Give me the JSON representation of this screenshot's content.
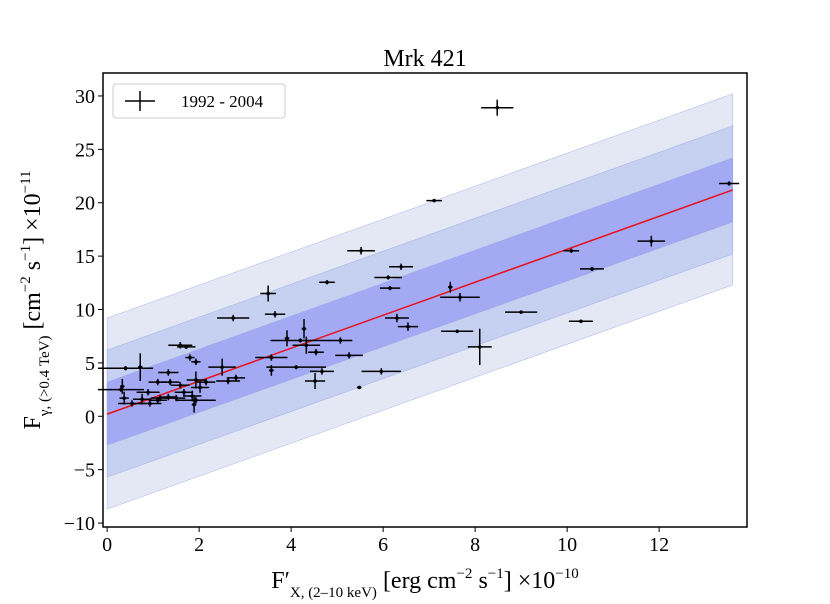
{
  "chart_data": {
    "type": "errorbar",
    "title": "Mrk 421",
    "xlabel": [
      "F′",
      "X, (2–10 keV)",
      " [erg cm",
      "−2",
      " s",
      "−1",
      "] ×10",
      "−10"
    ],
    "ylabel": [
      "F",
      "γ, (>0.4 TeV)",
      " [cm",
      "−2",
      " s",
      "−1",
      "] ×10",
      "−11"
    ],
    "xlim": [
      -0.09,
      13.91
    ],
    "ylim": [
      -10.37,
      32.15
    ],
    "xticks": [
      0,
      2,
      4,
      6,
      8,
      10,
      12
    ],
    "yticks": [
      {
        "value": -10,
        "label": "−10"
      },
      {
        "value": -5,
        "label": "−5"
      },
      0,
      5,
      10,
      15,
      20,
      25,
      30
    ],
    "legend": "upper left",
    "bands": [
      {
        "x": [
          0,
          13.6
        ],
        "lower": [
          -8.7,
          12.3
        ],
        "upper": [
          9.2,
          30.2
        ],
        "color": "#e3e8f4"
      },
      {
        "x": [
          0,
          13.6
        ],
        "lower": [
          -5.7,
          15.2
        ],
        "upper": [
          6.2,
          27.2
        ],
        "color": "#c6d0f0"
      },
      {
        "x": [
          0,
          13.6
        ],
        "lower": [
          -2.7,
          18.2
        ],
        "upper": [
          3.2,
          24.2
        ],
        "color": "#a3a9f3"
      }
    ],
    "fit": {
      "x": [
        0,
        13.6
      ],
      "values": [
        0.2,
        21.2
      ],
      "color": "#e8101a"
    },
    "series": [
      {
        "name": "1992 - 2004",
        "color": "#000000",
        "x": [
          8.48,
          7.11,
          13.52,
          11.83,
          10.09,
          10.54,
          5.52,
          6.39,
          6.11,
          6.15,
          4.78,
          7.46,
          7.67,
          3.5,
          9.0,
          10.3,
          2.74,
          3.65,
          6.3,
          6.54,
          7.61,
          8.1,
          5.07,
          4.2,
          4.28,
          4.33,
          4.54,
          4.67,
          4.52,
          5.26,
          5.96,
          5.48,
          3.91,
          3.57,
          3.57,
          4.11,
          1.59,
          1.72,
          1.8,
          1.93,
          2.5,
          2.8,
          2.63,
          0.72,
          0.4,
          0.3,
          0.33,
          0.37,
          1.33,
          1.37,
          1.1,
          0.89,
          1.15,
          1.59,
          1.93,
          2.02,
          2.15,
          1.85,
          1.93,
          1.89,
          1.5,
          0.54,
          0.76,
          0.93,
          1.1,
          1.33,
          1.67
        ],
        "values": [
          28.9,
          20.2,
          21.8,
          16.4,
          15.5,
          13.8,
          15.5,
          14.0,
          13.0,
          12.0,
          12.55,
          12.1,
          11.15,
          11.5,
          9.75,
          8.9,
          9.2,
          9.55,
          9.2,
          8.4,
          7.96,
          6.5,
          7.1,
          7.1,
          8.2,
          6.65,
          6.0,
          4.2,
          3.3,
          5.7,
          4.2,
          2.7,
          7.3,
          5.5,
          4.3,
          4.6,
          6.65,
          6.5,
          5.5,
          5.1,
          4.6,
          3.6,
          3.3,
          4.6,
          4.5,
          2.5,
          2.8,
          1.7,
          4.1,
          3.2,
          3.2,
          2.25,
          1.7,
          2.9,
          3.4,
          2.7,
          3.2,
          1.9,
          1.5,
          1.1,
          1.7,
          1.2,
          1.6,
          1.2,
          1.5,
          1.8,
          2.25
        ],
        "xerr": [
          0.35,
          0.17,
          0.22,
          0.3,
          0.17,
          0.26,
          0.3,
          0.26,
          0.3,
          0.22,
          0.17,
          0.05,
          0.43,
          0.17,
          0.35,
          0.26,
          0.35,
          0.22,
          0.26,
          0.22,
          0.35,
          0.26,
          0.26,
          0.65,
          0.05,
          0.3,
          0.17,
          0.26,
          0.22,
          0.3,
          0.43,
          0.05,
          0.05,
          0.35,
          0.05,
          0.65,
          0.26,
          0.2,
          0.1,
          0.1,
          0.3,
          0.2,
          0.26,
          0.05,
          0.6,
          0.5,
          0.05,
          0.1,
          0.22,
          0.2,
          0.2,
          0.25,
          0.2,
          0.2,
          0.2,
          0.2,
          0.2,
          0.2,
          0.43,
          0.05,
          0.2,
          0.3,
          0.2,
          0.25,
          0.2,
          0.2,
          0.2
        ],
        "yerr": [
          0.75,
          0.1,
          0.2,
          0.5,
          0.2,
          0.2,
          0.35,
          0.3,
          0.2,
          0.2,
          0.2,
          0.5,
          0.4,
          0.75,
          0.1,
          0.1,
          0.3,
          0.3,
          0.4,
          0.4,
          0.1,
          1.7,
          0.3,
          0.2,
          0.9,
          0.8,
          0.3,
          0.3,
          0.75,
          0.3,
          0.3,
          0.1,
          0.75,
          0.3,
          0.5,
          0.2,
          0.3,
          0.2,
          0.3,
          0.3,
          0.8,
          0.3,
          0.3,
          1.3,
          0.2,
          0.2,
          0.7,
          0.6,
          0.3,
          0.3,
          0.3,
          0.3,
          0.3,
          0.3,
          0.8,
          0.5,
          0.3,
          0.5,
          0.3,
          0.75,
          0.3,
          0.3,
          0.5,
          0.3,
          0.3,
          0.3,
          0.3
        ]
      }
    ]
  }
}
